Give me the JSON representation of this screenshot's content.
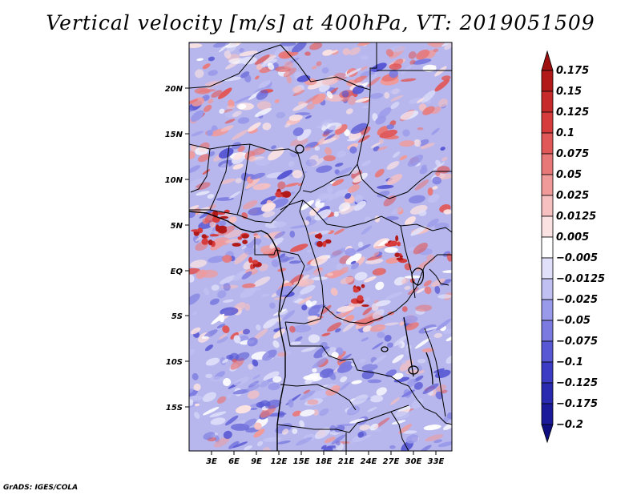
{
  "title": "Vertical velocity [m/s] at 400hPa, VT: 2019051509",
  "credit": "GrADS: IGES/COLA",
  "map": {
    "lat_labels": [
      "20N",
      "15N",
      "10N",
      "5N",
      "EQ",
      "5S",
      "10S",
      "15S"
    ],
    "lon_labels": [
      "3E",
      "6E",
      "9E",
      "12E",
      "15E",
      "18E",
      "21E",
      "24E",
      "27E",
      "30E",
      "33E"
    ]
  },
  "colorbar": {
    "levels": [
      "0.175",
      "0.15",
      "0.125",
      "0.1",
      "0.075",
      "0.05",
      "0.025",
      "0.0125",
      "0.005",
      "−0.005",
      "−0.0125",
      "−0.025",
      "−0.05",
      "−0.075",
      "−0.1",
      "−0.125",
      "−0.175",
      "−0.2"
    ],
    "colors": [
      "#9e0f0f",
      "#b21a1a",
      "#c62a2a",
      "#d63c3c",
      "#e05858",
      "#e87878",
      "#f09a9a",
      "#f6c0c0",
      "#fbe2e2",
      "#ffffff",
      "#e0e0fa",
      "#c0c0f2",
      "#9a9aea",
      "#7a7ae0",
      "#5858d4",
      "#3c3cc4",
      "#2a2ab0",
      "#1a1a9a",
      "#0f0f82"
    ]
  }
}
